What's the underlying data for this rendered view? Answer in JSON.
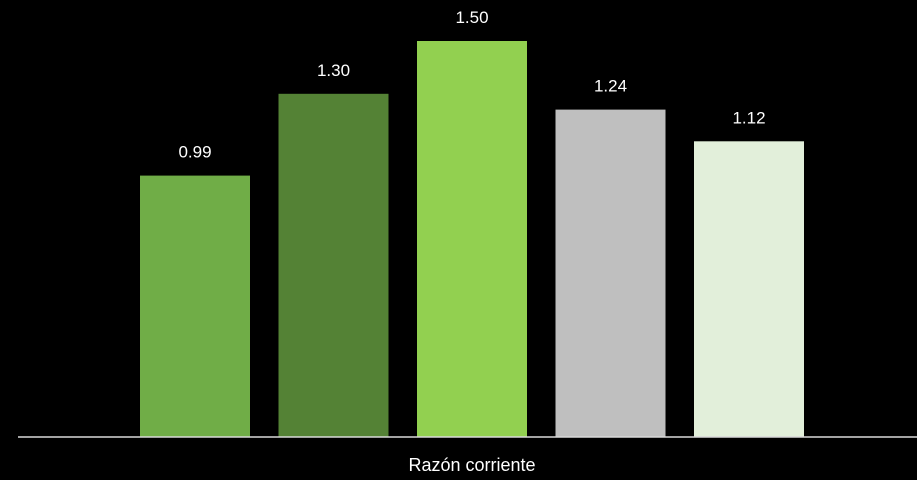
{
  "chart_data": {
    "type": "bar",
    "categories": [
      "Razón corriente"
    ],
    "series": [
      {
        "values": [
          0.99
        ],
        "color": "#70ad47"
      },
      {
        "values": [
          1.3
        ],
        "color": "#548235"
      },
      {
        "values": [
          1.5
        ],
        "color": "#92d050"
      },
      {
        "values": [
          1.24
        ],
        "color": "#bfbfbf"
      },
      {
        "values": [
          1.12
        ],
        "color": "#e2efda"
      }
    ],
    "data_labels": [
      "0.99",
      "1.30",
      "1.50",
      "1.24",
      "1.12"
    ],
    "ylim": [
      0,
      1.5
    ],
    "grid": false,
    "legend": "none",
    "background": "#000000",
    "label_color": "#ffffff"
  }
}
